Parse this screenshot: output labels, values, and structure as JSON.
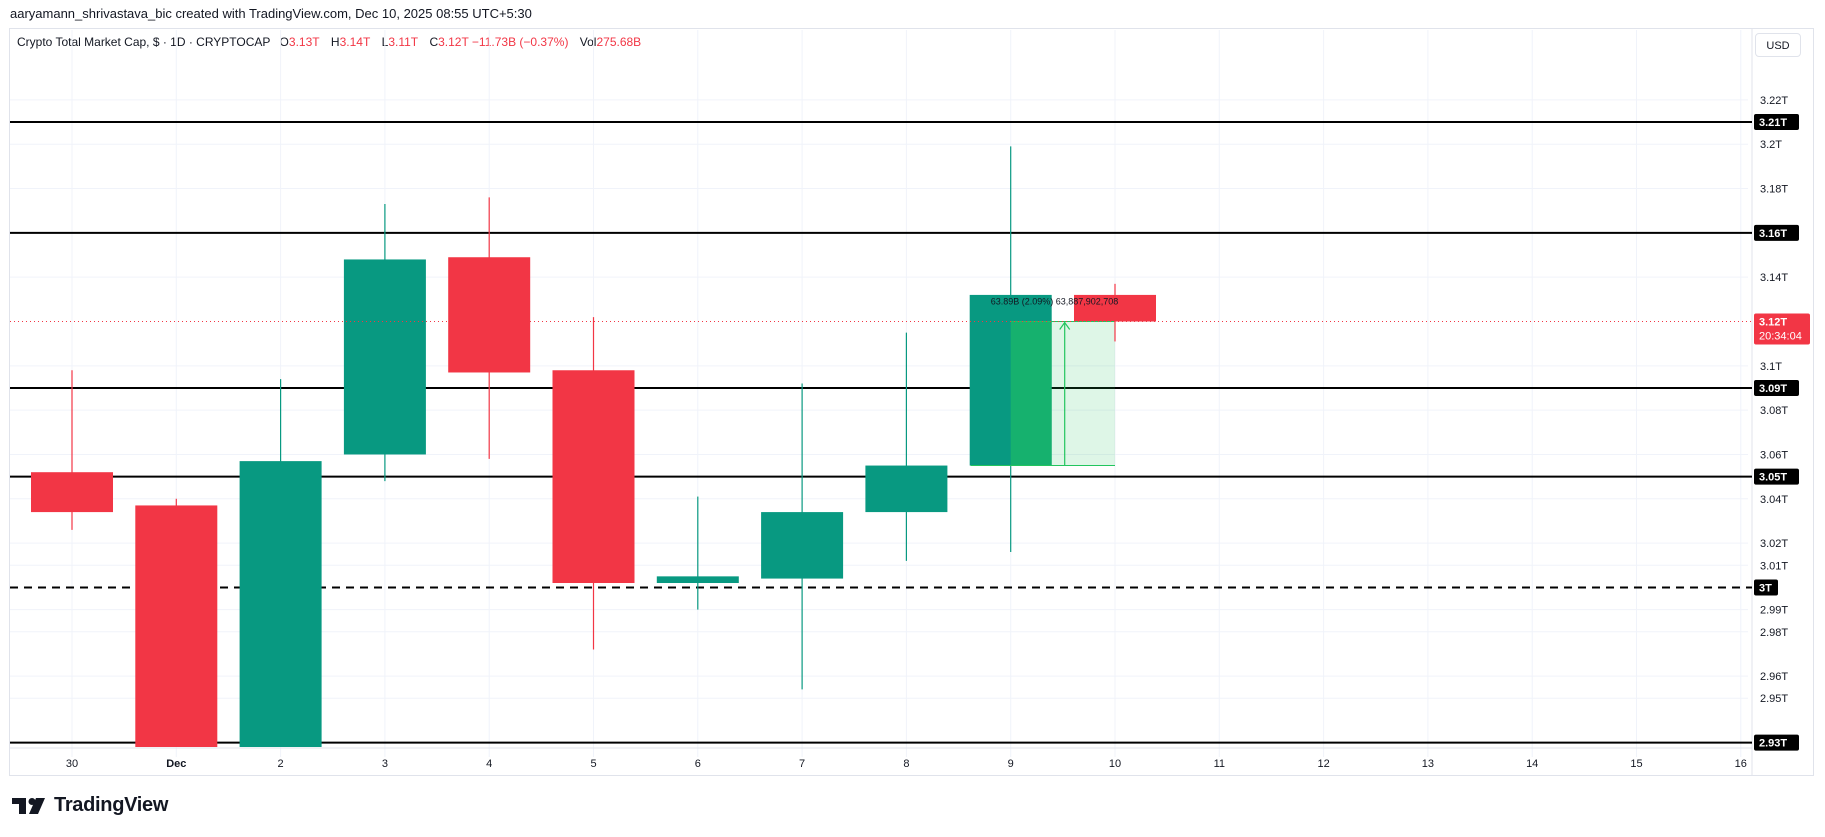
{
  "header": {
    "attribution": "aaryamann_shrivastava_bic created with TradingView.com, Dec 10, 2025 08:55 UTC+5:30"
  },
  "legend": {
    "symbol": "Crypto Total Market Cap, $ · 1D · CRYPTOCAP",
    "o_label": "O",
    "o_value": "3.13T",
    "h_label": "H",
    "h_value": "3.14T",
    "l_label": "L",
    "l_value": "3.11T",
    "c_label": "C",
    "c_value": "3.12T −11.73B (−0.37%)",
    "vol_label": "Vol",
    "vol_value": "275.68B"
  },
  "currency_button": "USD",
  "brand": "TradingView",
  "colors": {
    "up": "#089981",
    "down": "#f23645",
    "line": "#000000",
    "measure": "#22c55e"
  },
  "chart_data": {
    "type": "candlestick",
    "x_tick_labels": [
      "30",
      "Dec",
      "2",
      "3",
      "4",
      "5",
      "6",
      "7",
      "8",
      "9",
      "10",
      "11",
      "12",
      "13",
      "14",
      "15",
      "16"
    ],
    "y_tick_labels": [
      "3.22T",
      "3.2T",
      "3.18T",
      "3.14T",
      "3.1T",
      "3.08T",
      "3.06T",
      "3.04T",
      "3.02T",
      "3.01T",
      "2.99T",
      "2.98T",
      "2.96T",
      "2.95T"
    ],
    "y_ticks_values": [
      3.22,
      3.2,
      3.18,
      3.14,
      3.1,
      3.08,
      3.06,
      3.04,
      3.02,
      3.01,
      2.99,
      2.98,
      2.96,
      2.95
    ],
    "ylim": [
      2.928,
      3.238
    ],
    "candles": [
      {
        "label": "30",
        "open": 3.052,
        "high": 3.098,
        "low": 3.026,
        "close": 3.034
      },
      {
        "label": "Dec",
        "open": 3.037,
        "high": 3.04,
        "low": 2.928,
        "close": 2.928
      },
      {
        "label": "2",
        "open": 2.928,
        "high": 3.094,
        "low": 2.928,
        "close": 3.057
      },
      {
        "label": "3",
        "open": 3.06,
        "high": 3.173,
        "low": 3.048,
        "close": 3.148
      },
      {
        "label": "4",
        "open": 3.149,
        "high": 3.176,
        "low": 3.058,
        "close": 3.097
      },
      {
        "label": "5",
        "open": 3.098,
        "high": 3.122,
        "low": 2.972,
        "close": 3.002
      },
      {
        "label": "6",
        "open": 3.002,
        "high": 3.041,
        "low": 2.99,
        "close": 3.005
      },
      {
        "label": "7",
        "open": 3.004,
        "high": 3.092,
        "low": 2.954,
        "close": 3.034
      },
      {
        "label": "8",
        "open": 3.034,
        "high": 3.115,
        "low": 3.012,
        "close": 3.055
      },
      {
        "label": "9",
        "open": 3.055,
        "high": 3.199,
        "low": 3.016,
        "close": 3.132
      },
      {
        "label": "10",
        "open": 3.132,
        "high": 3.137,
        "low": 3.111,
        "close": 3.12
      }
    ],
    "horizontal_levels": [
      {
        "value": 3.21,
        "label": "3.21T",
        "style": "solid"
      },
      {
        "value": 3.16,
        "label": "3.16T",
        "style": "solid"
      },
      {
        "value": 3.09,
        "label": "3.09T",
        "style": "solid"
      },
      {
        "value": 3.05,
        "label": "3.05T",
        "style": "solid"
      },
      {
        "value": 3.0,
        "label": "3T",
        "style": "dashed"
      },
      {
        "value": 2.93,
        "label": "2.93T",
        "style": "solid"
      }
    ],
    "current_price": {
      "value": 3.12,
      "label": "3.12T",
      "countdown": "20:34:04"
    },
    "measure": {
      "from": 3.055,
      "to": 3.12,
      "label": "63.89B (2.09%) 63,887,902,708"
    }
  }
}
